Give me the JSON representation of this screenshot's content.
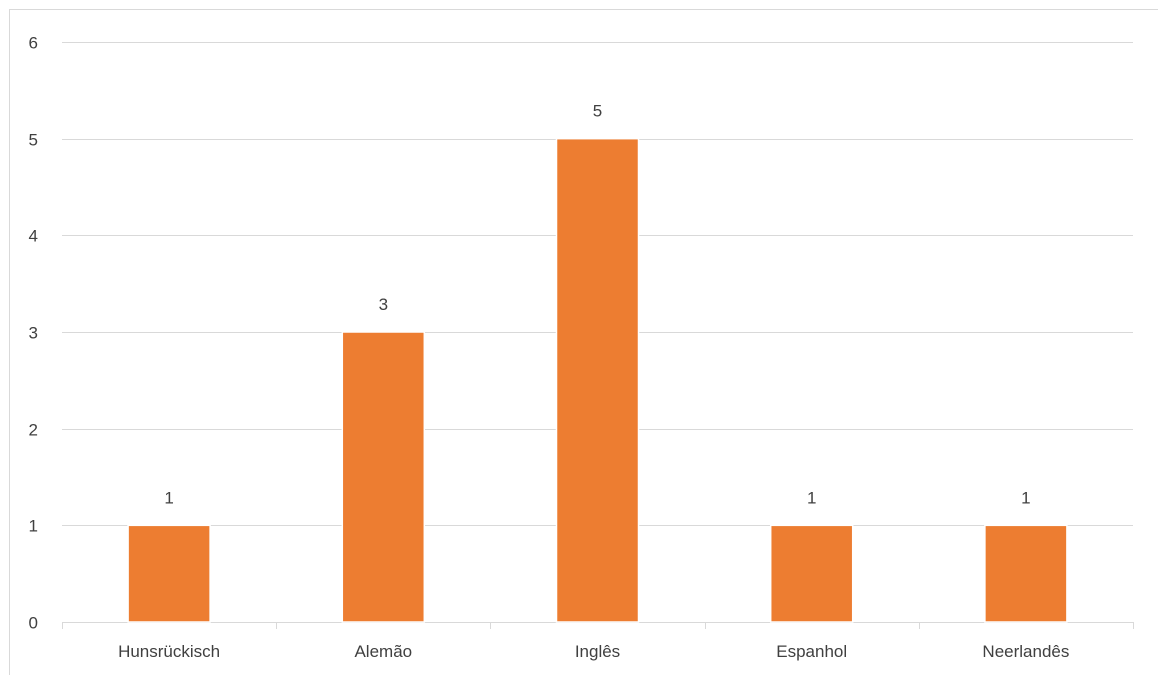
{
  "chart_data": {
    "type": "bar",
    "categories": [
      "Hunsrückisch",
      "Alemão",
      "Inglês",
      "Espanhol",
      "Neerlandês"
    ],
    "values": [
      1,
      3,
      5,
      1,
      1
    ],
    "data_labels": [
      "1",
      "3",
      "5",
      "1",
      "1"
    ],
    "y_ticks": [
      "0",
      "1",
      "2",
      "3",
      "4",
      "5",
      "6"
    ],
    "ylim": [
      0,
      6
    ],
    "grid": true,
    "legend": "none",
    "title": "",
    "xlabel": "",
    "ylabel": "",
    "bar_color": "#ED7D31",
    "gridline_color": "#D9D9D9",
    "text_color": "#404040"
  }
}
